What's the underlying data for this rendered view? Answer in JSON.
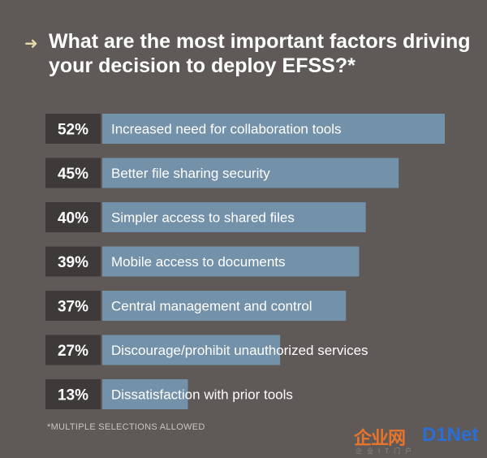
{
  "header": {
    "arrow": "➜",
    "title": "What are the most important factors driving your decision to deploy EFSS?*"
  },
  "chart_data": {
    "type": "bar",
    "orientation": "horizontal",
    "categories": [
      "Increased need for collaboration tools",
      "Better file sharing security",
      "Simpler access to shared files",
      "Mobile access to documents",
      "Central management and control",
      "Discourage/prohibit unauthorized services",
      "Dissatisfaction with prior tools"
    ],
    "values": [
      52,
      45,
      40,
      39,
      37,
      27,
      13
    ],
    "value_labels": [
      "52%",
      "45%",
      "40%",
      "39%",
      "37%",
      "27%",
      "13%"
    ],
    "xlim": [
      0,
      52
    ],
    "colors": {
      "bar": "#7391a9",
      "label_box": "#3d3a39",
      "text": "#ffffff"
    }
  },
  "footnote": "*MULTIPLE SELECTIONS ALLOWED",
  "watermark": {
    "cn": "企业网",
    "en": "D1Net",
    "sub": "企业IT门户"
  }
}
